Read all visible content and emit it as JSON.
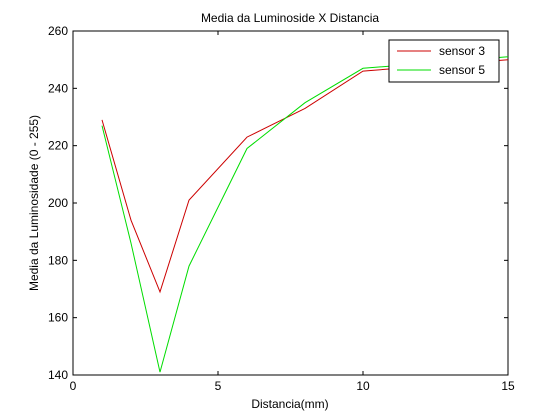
{
  "chart_data": {
    "type": "line",
    "title": "Media da Luminoside X Distancia",
    "xlabel": "Distancia(mm)",
    "ylabel": "Media da Luminosidade (0 - 255)",
    "xlim": [
      0,
      15
    ],
    "ylim": [
      140,
      260
    ],
    "xticks": [
      0,
      5,
      10,
      15
    ],
    "yticks": [
      140,
      160,
      180,
      200,
      220,
      240,
      260
    ],
    "grid": false,
    "legend_position": "top-right",
    "series": [
      {
        "name": "sensor 3",
        "color": "#cc0000",
        "x": [
          1,
          2,
          3,
          4,
          6,
          8,
          10,
          15
        ],
        "y": [
          229,
          194,
          169,
          201,
          223,
          233,
          246,
          250
        ]
      },
      {
        "name": "sensor 5",
        "color": "#00dd00",
        "x": [
          1,
          2,
          3,
          4,
          6,
          8,
          10,
          15
        ],
        "y": [
          227,
          186,
          141,
          178,
          219,
          235,
          247,
          251
        ]
      }
    ]
  }
}
